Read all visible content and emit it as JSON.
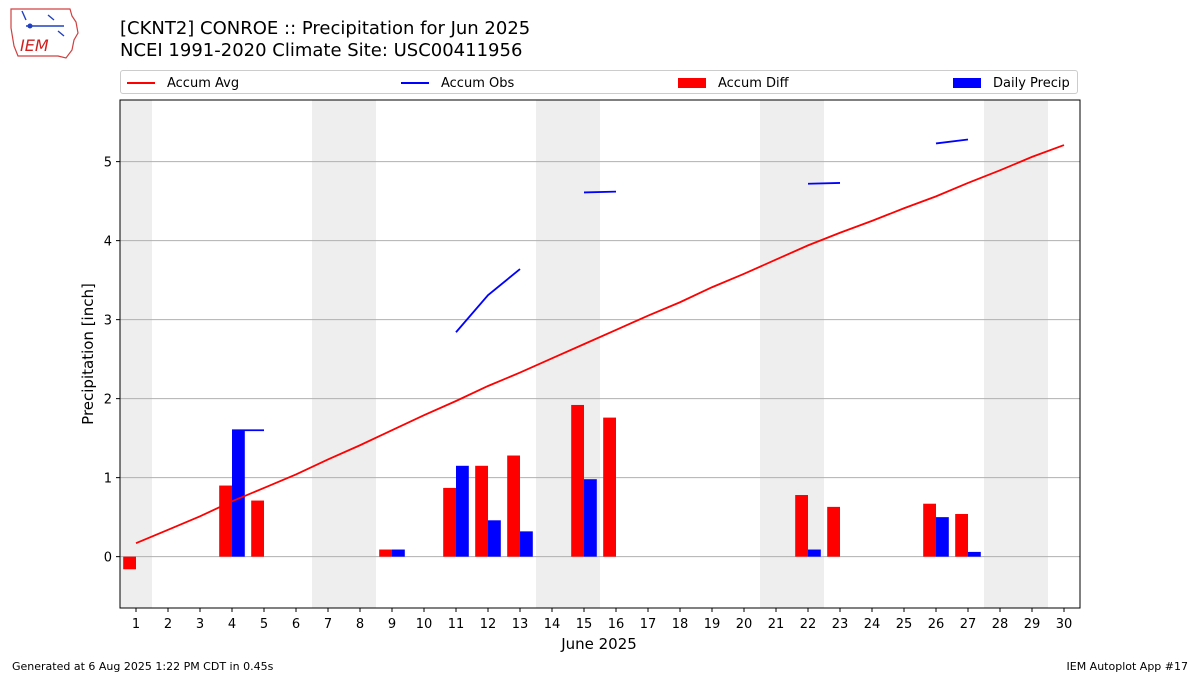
{
  "logo": {
    "text": "IEM"
  },
  "header": {
    "title_line1": "[CKNT2] CONROE :: Precipitation for Jun 2025",
    "title_line2": "NCEI 1991-2020 Climate Site: USC00411956"
  },
  "footer": {
    "left": "Generated at 6 Aug 2025 1:22 PM CDT in 0.45s",
    "right": "IEM Autoplot App #17"
  },
  "colors": {
    "avg": "#ff0000",
    "obs": "#0000ff",
    "diff": "#ff0000",
    "daily": "#0000ff",
    "weekend": "#eeeeee",
    "grid": "#b0b0b0"
  },
  "chart_data": {
    "type": "bar",
    "xlabel": "June 2025",
    "ylabel": "Precipitation [inch]",
    "xlim": [
      0.5,
      30.5
    ],
    "ylim": [
      -0.65,
      5.78
    ],
    "yticks": [
      0,
      1,
      2,
      3,
      4,
      5
    ],
    "grid": true,
    "legend_position": "top",
    "days": [
      1,
      2,
      3,
      4,
      5,
      6,
      7,
      8,
      9,
      10,
      11,
      12,
      13,
      14,
      15,
      16,
      17,
      18,
      19,
      20,
      21,
      22,
      23,
      24,
      25,
      26,
      27,
      28,
      29,
      30
    ],
    "weekend_days": [
      1,
      7,
      8,
      14,
      15,
      21,
      22,
      28,
      29
    ],
    "series": [
      {
        "name": "Accum Avg",
        "kind": "line",
        "values": [
          0.17,
          0.34,
          0.51,
          0.7,
          0.87,
          1.04,
          1.23,
          1.41,
          1.6,
          1.79,
          1.97,
          2.16,
          2.33,
          2.51,
          2.69,
          2.87,
          3.05,
          3.22,
          3.41,
          3.58,
          3.76,
          3.94,
          4.1,
          4.25,
          4.41,
          4.56,
          4.73,
          4.89,
          5.06,
          5.21
        ]
      },
      {
        "name": "Accum Obs",
        "kind": "line",
        "values": [
          null,
          null,
          null,
          1.6,
          1.6,
          null,
          null,
          null,
          null,
          null,
          2.84,
          3.31,
          3.64,
          null,
          4.61,
          4.62,
          null,
          null,
          null,
          null,
          null,
          4.72,
          4.73,
          null,
          null,
          5.23,
          5.28,
          null,
          null,
          null
        ]
      },
      {
        "name": "Accum Diff",
        "kind": "bar",
        "values": [
          -0.16,
          null,
          null,
          0.9,
          0.71,
          null,
          null,
          null,
          0.09,
          null,
          0.87,
          1.15,
          1.28,
          null,
          1.92,
          1.76,
          null,
          null,
          null,
          null,
          null,
          0.78,
          0.63,
          null,
          null,
          0.67,
          0.54,
          null,
          null,
          null
        ]
      },
      {
        "name": "Daily Precip",
        "kind": "bar",
        "values": [
          null,
          null,
          null,
          1.6,
          null,
          null,
          null,
          null,
          0.09,
          null,
          1.15,
          0.46,
          0.32,
          null,
          0.98,
          null,
          null,
          null,
          null,
          null,
          null,
          0.09,
          null,
          null,
          null,
          0.5,
          0.06,
          null,
          null,
          null
        ]
      }
    ]
  }
}
